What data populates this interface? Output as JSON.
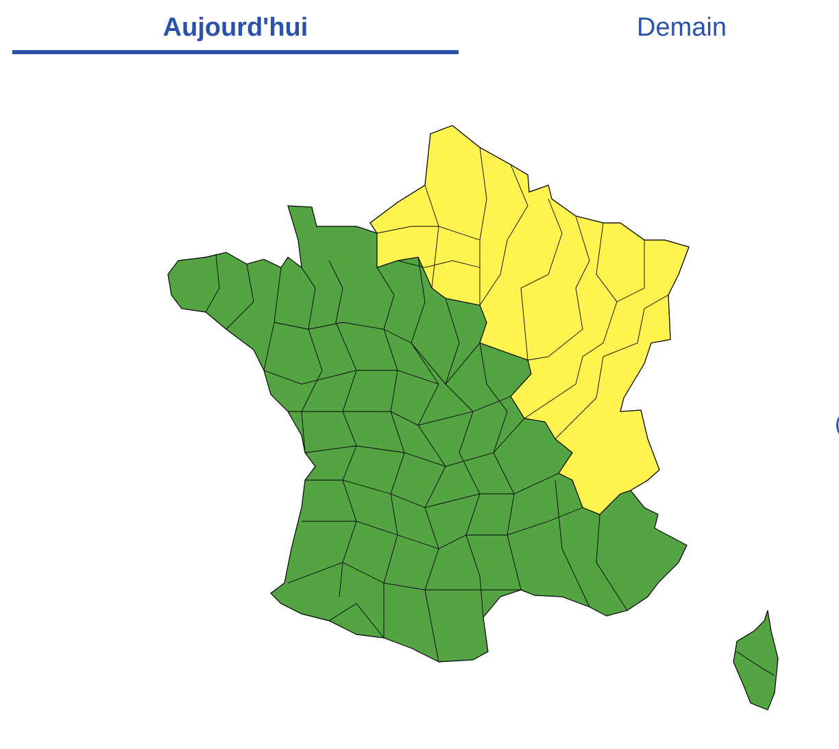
{
  "tabs": [
    {
      "label": "Aujourd'hui",
      "active": true
    },
    {
      "label": "Demain",
      "active": false
    }
  ],
  "colors": {
    "accent": "#2a52aa",
    "vigilance_green": "#54a444",
    "vigilance_yellow": "#fff34f",
    "border": "#000000"
  },
  "map": {
    "regions": [
      {
        "area": "north-east France",
        "level": "yellow"
      },
      {
        "area": "rest of mainland France",
        "level": "green"
      },
      {
        "area": "Corsica",
        "level": "green"
      }
    ]
  }
}
